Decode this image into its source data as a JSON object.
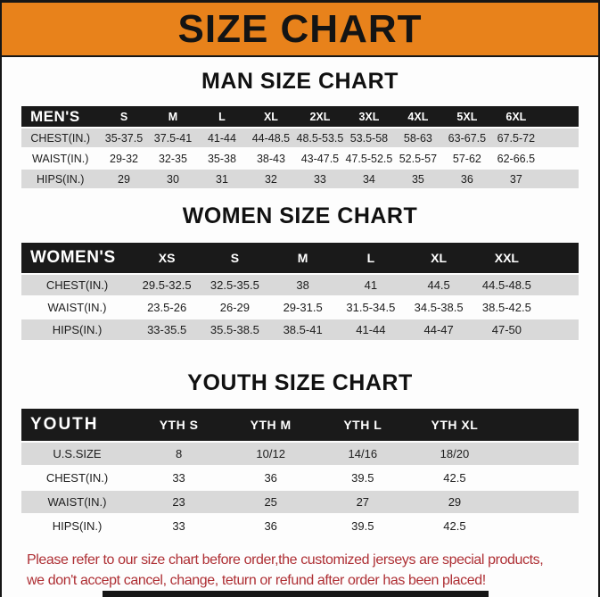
{
  "banner": {
    "title": "SIZE CHART"
  },
  "sections": [
    {
      "heading": "MAN SIZE CHART",
      "table": {
        "header_label": "MEN'S",
        "columns": [
          "S",
          "M",
          "L",
          "XL",
          "2XL",
          "3XL",
          "4XL",
          "5XL",
          "6XL"
        ],
        "rows": [
          {
            "label": "CHEST(IN.)",
            "values": [
              "35-37.5",
              "37.5-41",
              "41-44",
              "44-48.5",
              "48.5-53.5",
              "53.5-58",
              "58-63",
              "63-67.5",
              "67.5-72"
            ]
          },
          {
            "label": "WAIST(IN.)",
            "values": [
              "29-32",
              "32-35",
              "35-38",
              "38-43",
              "43-47.5",
              "47.5-52.5",
              "52.5-57",
              "57-62",
              "62-66.5"
            ]
          },
          {
            "label": "HIPS(IN.)",
            "values": [
              "29",
              "30",
              "31",
              "32",
              "33",
              "34",
              "35",
              "36",
              "37"
            ]
          }
        ]
      }
    },
    {
      "heading": "WOMEN SIZE CHART",
      "table": {
        "header_label": "WOMEN'S",
        "columns": [
          "XS",
          "S",
          "M",
          "L",
          "XL",
          "XXL"
        ],
        "rows": [
          {
            "label": "CHEST(IN.)",
            "values": [
              "29.5-32.5",
              "32.5-35.5",
              "38",
              "41",
              "44.5",
              "44.5-48.5"
            ]
          },
          {
            "label": "WAIST(IN.)",
            "values": [
              "23.5-26",
              "26-29",
              "29-31.5",
              "31.5-34.5",
              "34.5-38.5",
              "38.5-42.5"
            ]
          },
          {
            "label": "HIPS(IN.)",
            "values": [
              "33-35.5",
              "35.5-38.5",
              "38.5-41",
              "41-44",
              "44-47",
              "47-50"
            ]
          }
        ]
      }
    },
    {
      "heading": "YOUTH SIZE CHART",
      "table": {
        "header_label": "YOUTH",
        "columns": [
          "YTH S",
          "YTH M",
          "YTH L",
          "YTH XL"
        ],
        "rows": [
          {
            "label": "U.S.SIZE",
            "values": [
              "8",
              "10/12",
              "14/16",
              "18/20"
            ]
          },
          {
            "label": "CHEST(IN.)",
            "values": [
              "33",
              "36",
              "39.5",
              "42.5"
            ]
          },
          {
            "label": "WAIST(IN.)",
            "values": [
              "23",
              "25",
              "27",
              "29"
            ]
          },
          {
            "label": "HIPS(IN.)",
            "values": [
              "33",
              "36",
              "39.5",
              "42.5"
            ]
          }
        ]
      }
    }
  ],
  "disclaimer": {
    "line1": "Please refer to our size chart before order,the customized jerseys are special products,",
    "line2": "we don't accept cancel, change, teturn or refund after order has been placed!"
  },
  "colors": {
    "banner_background": "#e8821b",
    "table_header_background": "#1a1a1a",
    "row_stripe": "#d9d9d9",
    "disclaimer_text": "#ae2f34",
    "frame_border": "#161616"
  }
}
